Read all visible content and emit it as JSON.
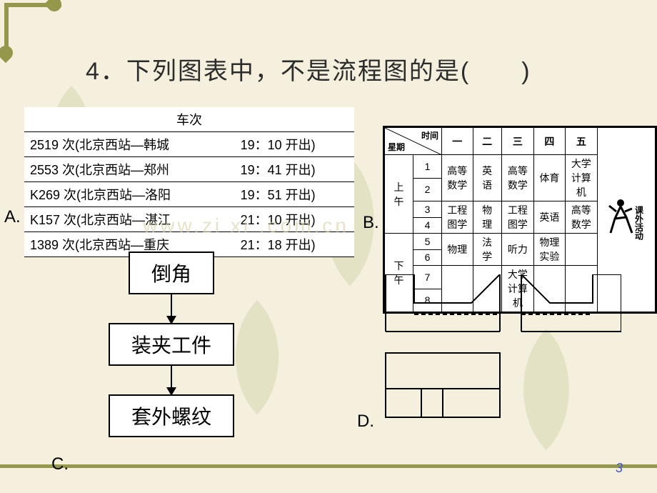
{
  "question": "4．下列图表中，不是流程图的是(　　)",
  "labels": {
    "A": "A.",
    "B": "B.",
    "C": "C.",
    "D": "D."
  },
  "page_number": "3",
  "watermark": "www.zi xi .com.cn",
  "optionA": {
    "header": "车次",
    "rows": [
      {
        "train": "2519 次(北京西站—韩城",
        "time": "19：10 开出)"
      },
      {
        "train": "2553 次(北京西站—郑州",
        "time": "19：41 开出)"
      },
      {
        "train": "K269 次(北京西站—洛阳",
        "time": "19：51 开出)"
      },
      {
        "train": "K157 次(北京西站—湛江",
        "time": "21：10 开出)"
      },
      {
        "train": "1389 次(北京西站—重庆",
        "time": "21：18 开出)"
      }
    ]
  },
  "optionB": {
    "diag_top": "时间",
    "diag_bottom": "星期",
    "days": [
      "一",
      "二",
      "三",
      "四",
      "五"
    ],
    "side_label": "课外活动",
    "sessions": [
      {
        "name": "上午",
        "periods": [
          "1",
          "2",
          "3",
          "4"
        ]
      },
      {
        "name": "下午",
        "periods": [
          "5",
          "6",
          "7",
          "8"
        ]
      }
    ],
    "grid": [
      [
        "高等数学",
        "英语",
        "高等数学",
        "体育",
        "大学计算机"
      ],
      [
        "",
        "",
        "",
        "",
        ""
      ],
      [
        "工程图学",
        "物理",
        "工程图学",
        "英语",
        "高等数学"
      ],
      [
        "",
        "",
        "",
        "",
        ""
      ],
      [
        "物理",
        "法学",
        "听力",
        "物理实验",
        ""
      ],
      [
        "",
        "",
        "",
        "",
        ""
      ],
      [
        "",
        "",
        "大学计算机",
        "",
        ""
      ],
      [
        "",
        "",
        "",
        "",
        ""
      ]
    ]
  },
  "optionC": {
    "boxes": [
      "倒角",
      "装夹工件",
      "套外螺纹"
    ]
  },
  "optionD": {
    "stroke": "#000",
    "dash": "6,4"
  },
  "colors": {
    "page_bg": "#f4f0dd",
    "deco": "#8a8f3b",
    "pagenum": "#3a56c4"
  }
}
